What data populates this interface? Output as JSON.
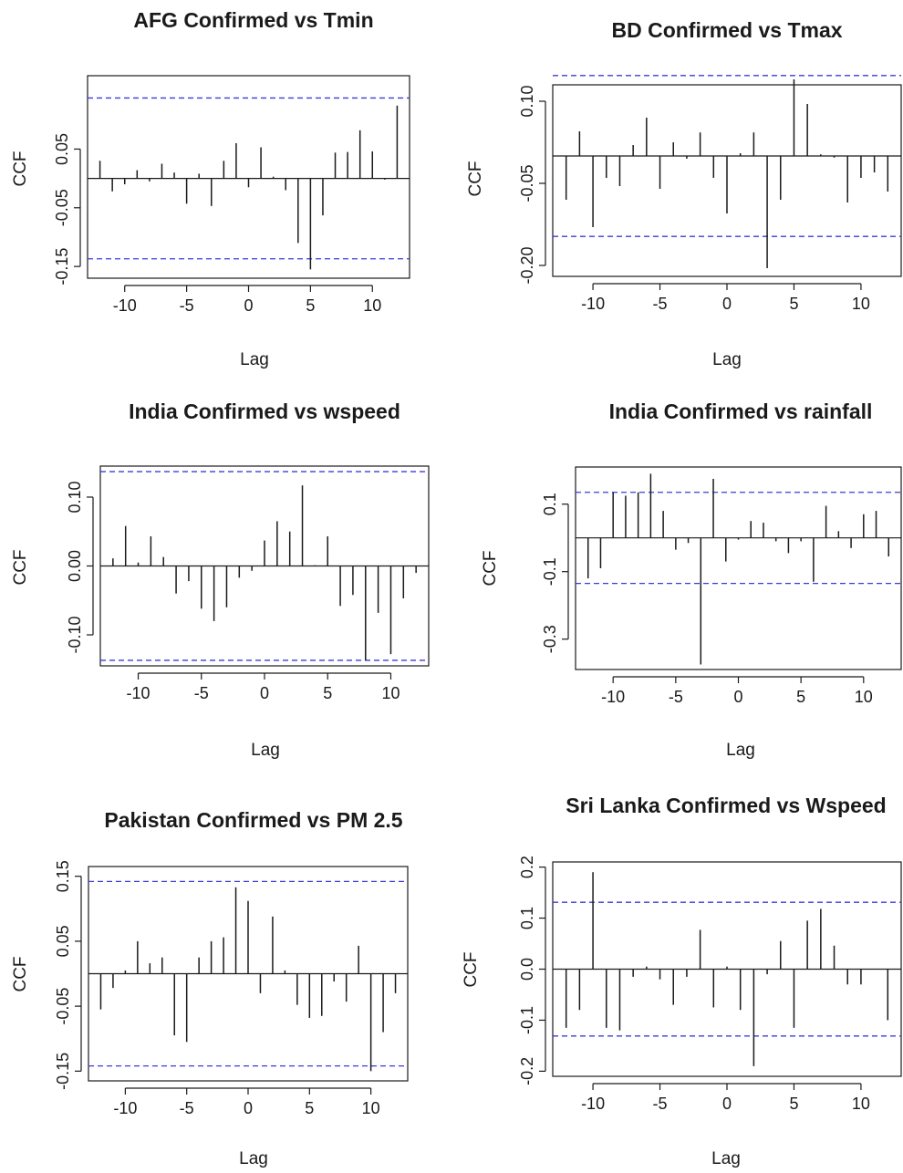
{
  "chart_data": [
    {
      "type": "bar",
      "title": "AFG Confirmed  vs Tmin",
      "xlabel": "Lag",
      "ylabel": "CCF",
      "xlim": [
        -13,
        13
      ],
      "ylim": [
        -0.17,
        0.175
      ],
      "x_ticks": [
        -10,
        -5,
        0,
        5,
        10
      ],
      "y_ticks": [
        0.05,
        -0.05,
        -0.15
      ],
      "y_tick_labels": [
        "0.05",
        "-0.05",
        "-0.15"
      ],
      "confidence_limit": 0.137,
      "lags": [
        -12,
        -11,
        -10,
        -9,
        -8,
        -7,
        -6,
        -5,
        -4,
        -3,
        -2,
        -1,
        0,
        1,
        2,
        3,
        4,
        5,
        6,
        7,
        8,
        9,
        10,
        11,
        12
      ],
      "values": [
        0.03,
        -0.022,
        -0.01,
        0.014,
        -0.005,
        0.025,
        0.01,
        -0.043,
        0.008,
        -0.047,
        0.03,
        0.06,
        -0.015,
        0.053,
        0.003,
        -0.02,
        -0.11,
        -0.155,
        -0.063,
        0.044,
        0.045,
        0.082,
        0.046,
        -0.002,
        0.124
      ]
    },
    {
      "type": "bar",
      "title": "BD Confirmed vs Tmax",
      "xlabel": "Lag",
      "ylabel": "CCF",
      "xlim": [
        -13,
        13
      ],
      "ylim": [
        -0.22,
        0.13
      ],
      "x_ticks": [
        -10,
        -5,
        0,
        5,
        10
      ],
      "y_ticks": [
        0.1,
        -0.05,
        -0.2
      ],
      "y_tick_labels": [
        "0.10",
        "-0.05",
        "-0.20"
      ],
      "confidence_limit": 0.147,
      "lags": [
        -12,
        -11,
        -10,
        -9,
        -8,
        -7,
        -6,
        -5,
        -4,
        -3,
        -2,
        -1,
        0,
        1,
        2,
        3,
        4,
        5,
        6,
        7,
        8,
        9,
        10,
        11,
        12
      ],
      "values": [
        -0.08,
        0.045,
        -0.13,
        -0.04,
        -0.055,
        0.02,
        0.07,
        -0.06,
        0.025,
        -0.005,
        0.043,
        -0.04,
        -0.105,
        0.005,
        0.043,
        -0.205,
        -0.08,
        0.14,
        0.095,
        0.003,
        -0.003,
        -0.085,
        -0.04,
        -0.03,
        -0.065
      ]
    },
    {
      "type": "bar",
      "title": "India Confirmed vs wspeed",
      "xlabel": "Lag",
      "ylabel": "CCF",
      "xlim": [
        -13,
        13
      ],
      "ylim": [
        -0.145,
        0.145
      ],
      "x_ticks": [
        -10,
        -5,
        0,
        5,
        10
      ],
      "y_ticks": [
        0.1,
        0.0,
        -0.1
      ],
      "y_tick_labels": [
        "0.10",
        "0.00",
        "-0.10"
      ],
      "confidence_limit": 0.137,
      "lags": [
        -12,
        -11,
        -10,
        -9,
        -8,
        -7,
        -6,
        -5,
        -4,
        -3,
        -2,
        -1,
        0,
        1,
        2,
        3,
        4,
        5,
        6,
        7,
        8,
        9,
        10,
        11,
        12
      ],
      "values": [
        0.011,
        0.058,
        0.005,
        0.043,
        0.013,
        -0.04,
        -0.022,
        -0.062,
        -0.08,
        -0.06,
        -0.017,
        -0.007,
        0.037,
        0.065,
        0.05,
        0.117,
        0.001,
        0.043,
        -0.058,
        -0.042,
        -0.137,
        -0.068,
        -0.128,
        -0.047,
        -0.01
      ]
    },
    {
      "type": "bar",
      "title": "India Confirmed vs rainfall",
      "xlabel": "Lag",
      "ylabel": "CCF",
      "xlim": [
        -13,
        13
      ],
      "ylim": [
        -0.39,
        0.21
      ],
      "x_ticks": [
        -10,
        -5,
        0,
        5,
        10
      ],
      "y_ticks": [
        0.1,
        -0.1,
        -0.3
      ],
      "y_tick_labels": [
        "0.1",
        "-0.1",
        "-0.3"
      ],
      "confidence_limit": 0.135,
      "lags": [
        -12,
        -11,
        -10,
        -9,
        -8,
        -7,
        -6,
        -5,
        -4,
        -3,
        -2,
        -1,
        0,
        1,
        2,
        3,
        4,
        5,
        6,
        7,
        8,
        9,
        10,
        11,
        12
      ],
      "values": [
        -0.12,
        -0.09,
        0.135,
        0.125,
        0.135,
        0.19,
        0.08,
        -0.035,
        -0.015,
        -0.375,
        0.175,
        -0.07,
        -0.005,
        0.05,
        0.045,
        -0.01,
        -0.045,
        -0.01,
        -0.13,
        0.095,
        0.02,
        -0.03,
        0.07,
        0.08,
        -0.055
      ]
    },
    {
      "type": "bar",
      "title": "Pakistan Confirmed vs PM 2.5",
      "xlabel": "Lag",
      "ylabel": "CCF",
      "xlim": [
        -13,
        13
      ],
      "ylim": [
        -0.165,
        0.165
      ],
      "x_ticks": [
        -10,
        -5,
        0,
        5,
        10
      ],
      "y_ticks": [
        0.15,
        0.05,
        -0.05,
        -0.15
      ],
      "y_tick_labels": [
        "0.15",
        "0.05",
        "-0.05",
        "-0.15"
      ],
      "confidence_limit": 0.142,
      "lags": [
        -12,
        -11,
        -10,
        -9,
        -8,
        -7,
        -6,
        -5,
        -4,
        -3,
        -2,
        -1,
        0,
        1,
        2,
        3,
        4,
        5,
        6,
        7,
        8,
        9,
        10,
        11,
        12
      ],
      "values": [
        -0.055,
        -0.022,
        0.005,
        0.05,
        0.016,
        0.025,
        -0.095,
        -0.105,
        0.025,
        0.05,
        0.056,
        0.133,
        0.112,
        -0.03,
        0.088,
        0.005,
        -0.048,
        -0.068,
        -0.065,
        -0.012,
        -0.043,
        0.043,
        -0.15,
        -0.09,
        -0.03
      ]
    },
    {
      "type": "bar",
      "title": "Sri Lanka Confirmed vs Wspeed",
      "xlabel": "Lag",
      "ylabel": "CCF",
      "xlim": [
        -13,
        13
      ],
      "ylim": [
        -0.21,
        0.21
      ],
      "x_ticks": [
        -10,
        -5,
        0,
        5,
        10
      ],
      "y_ticks": [
        0.2,
        0.1,
        0.0,
        -0.1,
        -0.2
      ],
      "y_tick_labels": [
        "0.2",
        "0.1",
        "0.0",
        "-0.1",
        "-0.2"
      ],
      "confidence_limit": 0.131,
      "lags": [
        -12,
        -11,
        -10,
        -9,
        -8,
        -7,
        -6,
        -5,
        -4,
        -3,
        -2,
        -1,
        0,
        1,
        2,
        3,
        4,
        5,
        6,
        7,
        8,
        9,
        10,
        11,
        12
      ],
      "values": [
        -0.115,
        -0.08,
        0.19,
        -0.115,
        -0.12,
        -0.015,
        0.005,
        -0.02,
        -0.07,
        -0.015,
        0.077,
        -0.075,
        0.005,
        -0.08,
        -0.19,
        -0.01,
        0.055,
        -0.115,
        0.095,
        0.118,
        0.046,
        -0.03,
        -0.03,
        0.001,
        -0.1
      ]
    }
  ],
  "colors": {
    "bars": "#1a1a1a",
    "confidence_lines": "#3b3bdc",
    "axes": "#1a1a1a"
  }
}
